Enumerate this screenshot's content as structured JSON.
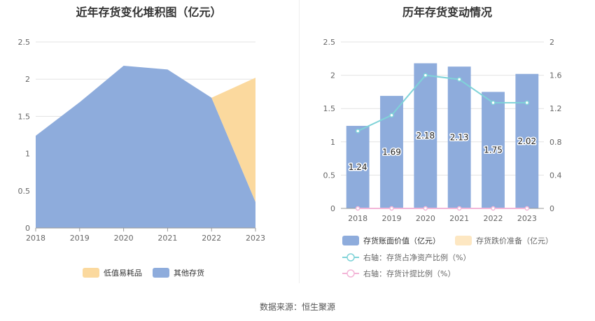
{
  "source_text": "数据来源：恒生聚源",
  "chart_data": [
    {
      "type": "area",
      "stacked": true,
      "title": "近年存货变化堆积图（亿元）",
      "categories": [
        "2018",
        "2019",
        "2020",
        "2021",
        "2022",
        "2023"
      ],
      "series": [
        {
          "name": "其他存货",
          "values": [
            1.24,
            1.69,
            2.18,
            2.13,
            1.75,
            0.35
          ],
          "color": "#8eacdc"
        },
        {
          "name": "低值易耗品",
          "values": [
            0,
            0,
            0,
            0,
            0,
            1.67
          ],
          "color": "#fbd99e"
        }
      ],
      "yticks": [
        "0",
        "0.5",
        "1",
        "1.5",
        "2",
        "2.5"
      ],
      "ylim": [
        0,
        2.5
      ],
      "legend": [
        "低值易耗品",
        "其他存货"
      ],
      "legend_position": "bottom",
      "grid": true
    },
    {
      "type": "bar",
      "title": "历年存货变动情况",
      "categories": [
        "2018",
        "2019",
        "2020",
        "2021",
        "2022",
        "2023"
      ],
      "series": [
        {
          "name": "存货账面价值（亿元）",
          "values": [
            1.24,
            1.69,
            2.18,
            2.13,
            1.75,
            2.02
          ],
          "color": "#8eacdc",
          "axis": "left"
        },
        {
          "name": "存货跌价准备（亿元）",
          "values": [
            0,
            0,
            0,
            0,
            0,
            0
          ],
          "color": "#fde7c2",
          "axis": "left"
        },
        {
          "name": "右轴：存货占净资产比例（%）",
          "type": "line",
          "values": [
            0.93,
            1.12,
            1.6,
            1.55,
            1.27,
            1.27
          ],
          "color": "#7fd3d8",
          "axis": "right"
        },
        {
          "name": "右轴：存货计提比例（%）",
          "type": "line",
          "values": [
            0,
            0,
            0,
            0,
            0,
            0
          ],
          "color": "#f3b6d8",
          "axis": "right"
        }
      ],
      "bar_labels": [
        "1.24",
        "1.69",
        "2.18",
        "2.13",
        "1.75",
        "2.02"
      ],
      "yticks_left": [
        "0",
        "0.5",
        "1",
        "1.5",
        "2",
        "2.5"
      ],
      "yticks_right": [
        "0",
        "0.4",
        "0.8",
        "1.2",
        "1.6",
        "2"
      ],
      "ylim_left": [
        0,
        2.5
      ],
      "ylim_right": [
        0,
        2
      ],
      "legend_position": "bottom",
      "grid": true
    }
  ]
}
